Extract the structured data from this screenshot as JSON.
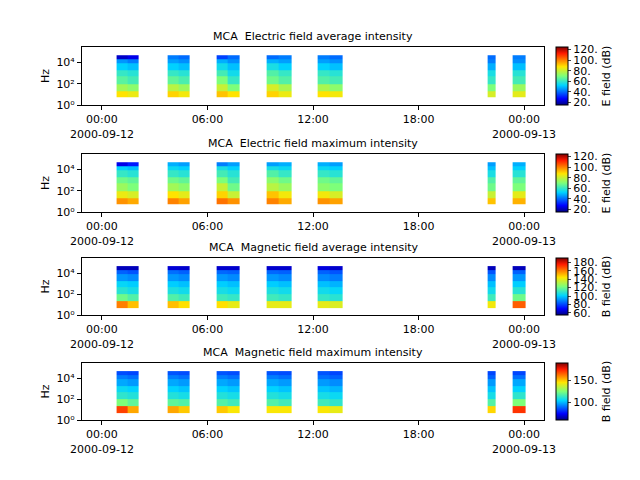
{
  "chart_data": [
    {
      "type": "heatmap",
      "title": "MCA  Electric field average intensity",
      "ylabel": "Hz",
      "log": "y",
      "xlim": [
        "2000-09-11 22:52",
        "2000-09-13 01:08"
      ],
      "xticks": [
        {
          "value": "2000-09-12 00:00",
          "label": "00:00\n2000-09-12"
        },
        {
          "value": "2000-09-12 06:00",
          "label": "06:00"
        },
        {
          "value": "2000-09-12 12:00",
          "label": "12:00"
        },
        {
          "value": "2000-09-12 18:00",
          "label": "18:00"
        },
        {
          "value": "2000-09-13 00:00",
          "label": "00:00\n2000-09-13"
        }
      ],
      "ylim": [
        1,
        300000
      ],
      "yticks": [
        {
          "value": 1,
          "label": "10⁰"
        },
        {
          "value": 100,
          "label": "10²"
        },
        {
          "value": 10000,
          "label": "10⁴"
        }
      ],
      "x_edges": [
        "2000-09-12 00:50",
        "2000-09-12 01:28",
        "2000-09-12 02:06",
        "2000-09-12 03:45",
        "2000-09-12 04:22",
        "2000-09-12 05:00",
        "2000-09-12 06:32",
        "2000-09-12 07:10",
        "2000-09-12 07:48",
        "2000-09-12 09:20",
        "2000-09-12 10:04",
        "2000-09-12 10:48",
        "2000-09-12 12:14",
        "2000-09-12 12:58",
        "2000-09-12 13:42",
        "2000-09-12 21:55",
        "2000-09-12 22:24",
        "2000-09-12 23:22",
        "2000-09-13 00:06"
      ],
      "y_edges": [
        5,
        20,
        100,
        500,
        2000,
        8000,
        20000,
        50000
      ],
      "z": [
        [
          88,
          85,
          null,
          90,
          86,
          null,
          92,
          88,
          null,
          90,
          85,
          null,
          88,
          86,
          null,
          82,
          null,
          84
        ],
        [
          75,
          72,
          null,
          78,
          74,
          null,
          80,
          70,
          null,
          82,
          76,
          null,
          76,
          72,
          null,
          70,
          null,
          74
        ],
        [
          65,
          62,
          null,
          66,
          63,
          null,
          70,
          60,
          null,
          68,
          64,
          null,
          64,
          62,
          null,
          60,
          null,
          62
        ],
        [
          60,
          58,
          null,
          60,
          58,
          null,
          62,
          55,
          null,
          64,
          60,
          null,
          60,
          58,
          null,
          56,
          null,
          58
        ],
        [
          52,
          50,
          null,
          52,
          50,
          null,
          55,
          50,
          null,
          56,
          52,
          null,
          52,
          50,
          null,
          48,
          null,
          50
        ],
        [
          45,
          42,
          null,
          46,
          44,
          null,
          48,
          44,
          null,
          48,
          46,
          null,
          46,
          44,
          null,
          42,
          null,
          44
        ],
        [
          22,
          25,
          null,
          42,
          40,
          null,
          35,
          40,
          null,
          40,
          42,
          null,
          42,
          40,
          null,
          40,
          null,
          42
        ]
      ],
      "colorbar_title": "E field (dB)",
      "colorbar_range": [
        15,
        125
      ],
      "colorbar_ticks": [
        {
          "value": 20,
          "label": "20."
        },
        {
          "value": 40,
          "label": "40."
        },
        {
          "value": 60,
          "label": "60."
        },
        {
          "value": 80,
          "label": "80."
        },
        {
          "value": 100,
          "label": "100."
        },
        {
          "value": 120,
          "label": "120."
        }
      ]
    },
    {
      "type": "heatmap",
      "title": "MCA  Electric field maximum intensity",
      "ylabel": "Hz",
      "log": "y",
      "xlim": [
        "2000-09-11 22:52",
        "2000-09-13 01:08"
      ],
      "xticks": [
        {
          "value": "2000-09-12 00:00",
          "label": "00:00\n2000-09-12"
        },
        {
          "value": "2000-09-12 06:00",
          "label": "06:00"
        },
        {
          "value": "2000-09-12 12:00",
          "label": "12:00"
        },
        {
          "value": "2000-09-12 18:00",
          "label": "18:00"
        },
        {
          "value": "2000-09-13 00:00",
          "label": "00:00\n2000-09-13"
        }
      ],
      "ylim": [
        1,
        300000
      ],
      "yticks": [
        {
          "value": 1,
          "label": "10⁰"
        },
        {
          "value": 100,
          "label": "10²"
        },
        {
          "value": 10000,
          "label": "10⁴"
        }
      ],
      "x_edges": [
        "2000-09-12 00:50",
        "2000-09-12 01:28",
        "2000-09-12 02:06",
        "2000-09-12 03:45",
        "2000-09-12 04:22",
        "2000-09-12 05:00",
        "2000-09-12 06:32",
        "2000-09-12 07:10",
        "2000-09-12 07:48",
        "2000-09-12 09:20",
        "2000-09-12 10:04",
        "2000-09-12 10:48",
        "2000-09-12 12:14",
        "2000-09-12 12:58",
        "2000-09-12 13:42",
        "2000-09-12 21:55",
        "2000-09-12 22:24",
        "2000-09-12 23:22",
        "2000-09-13 00:06"
      ],
      "y_edges": [
        5,
        20,
        100,
        500,
        2000,
        8000,
        20000,
        50000
      ],
      "z": [
        [
          98,
          95,
          null,
          100,
          96,
          null,
          102,
          98,
          null,
          100,
          95,
          null,
          98,
          96,
          null,
          92,
          null,
          94
        ],
        [
          85,
          82,
          null,
          88,
          84,
          null,
          90,
          80,
          null,
          92,
          86,
          null,
          86,
          82,
          null,
          80,
          null,
          84
        ],
        [
          74,
          70,
          null,
          75,
          72,
          null,
          80,
          68,
          null,
          78,
          74,
          null,
          72,
          70,
          null,
          68,
          null,
          70
        ],
        [
          68,
          66,
          null,
          68,
          66,
          null,
          70,
          62,
          null,
          72,
          68,
          null,
          68,
          66,
          null,
          64,
          null,
          66
        ],
        [
          60,
          58,
          null,
          60,
          58,
          null,
          62,
          58,
          null,
          64,
          60,
          null,
          60,
          58,
          null,
          56,
          null,
          58
        ],
        [
          52,
          50,
          null,
          54,
          52,
          null,
          56,
          52,
          null,
          56,
          54,
          null,
          54,
          52,
          null,
          50,
          null,
          52
        ],
        [
          25,
          30,
          null,
          48,
          46,
          null,
          42,
          46,
          null,
          46,
          48,
          null,
          48,
          46,
          null,
          46,
          null,
          48
        ]
      ],
      "colorbar_title": "E field (dB)",
      "colorbar_range": [
        15,
        125
      ],
      "colorbar_ticks": [
        {
          "value": 20,
          "label": "20."
        },
        {
          "value": 40,
          "label": "40."
        },
        {
          "value": 60,
          "label": "60."
        },
        {
          "value": 80,
          "label": "80."
        },
        {
          "value": 100,
          "label": "100."
        },
        {
          "value": 120,
          "label": "120."
        }
      ]
    },
    {
      "type": "heatmap",
      "title": "MCA  Magnetic field average intensity",
      "ylabel": "Hz",
      "log": "y",
      "xlim": [
        "2000-09-11 22:52",
        "2000-09-13 01:08"
      ],
      "xticks": [
        {
          "value": "2000-09-12 00:00",
          "label": "00:00\n2000-09-12"
        },
        {
          "value": "2000-09-12 06:00",
          "label": "06:00"
        },
        {
          "value": "2000-09-12 12:00",
          "label": "12:00"
        },
        {
          "value": "2000-09-12 18:00",
          "label": "18:00"
        },
        {
          "value": "2000-09-13 00:00",
          "label": "00:00\n2000-09-13"
        }
      ],
      "ylim": [
        1,
        300000
      ],
      "yticks": [
        {
          "value": 1,
          "label": "10⁰"
        },
        {
          "value": 100,
          "label": "10²"
        },
        {
          "value": 10000,
          "label": "10⁴"
        }
      ],
      "x_edges": [
        "2000-09-12 00:50",
        "2000-09-12 01:28",
        "2000-09-12 02:06",
        "2000-09-12 03:45",
        "2000-09-12 04:22",
        "2000-09-12 05:00",
        "2000-09-12 06:32",
        "2000-09-12 07:10",
        "2000-09-12 07:48",
        "2000-09-12 09:20",
        "2000-09-12 10:04",
        "2000-09-12 10:48",
        "2000-09-12 12:14",
        "2000-09-12 12:58",
        "2000-09-12 13:42",
        "2000-09-12 21:55",
        "2000-09-12 22:24",
        "2000-09-12 23:22",
        "2000-09-13 00:06"
      ],
      "y_edges": [
        5,
        20,
        100,
        500,
        2000,
        8000,
        20000,
        50000
      ],
      "z": [
        [
          160,
          150,
          null,
          150,
          145,
          null,
          145,
          140,
          null,
          140,
          140,
          null,
          140,
          138,
          null,
          142,
          null,
          165
        ],
        [
          120,
          115,
          null,
          115,
          112,
          null,
          112,
          110,
          null,
          112,
          110,
          null,
          110,
          108,
          null,
          112,
          null,
          120
        ],
        [
          108,
          105,
          null,
          106,
          104,
          null,
          105,
          103,
          null,
          106,
          104,
          null,
          104,
          102,
          null,
          104,
          null,
          108
        ],
        [
          102,
          100,
          null,
          100,
          98,
          null,
          100,
          98,
          null,
          100,
          98,
          null,
          98,
          96,
          null,
          98,
          null,
          100
        ],
        [
          92,
          90,
          null,
          92,
          90,
          null,
          92,
          90,
          null,
          92,
          90,
          null,
          90,
          88,
          null,
          90,
          null,
          92
        ],
        [
          84,
          82,
          null,
          86,
          84,
          null,
          85,
          84,
          null,
          85,
          84,
          null,
          84,
          82,
          null,
          82,
          null,
          84
        ],
        [
          62,
          62,
          null,
          65,
          64,
          null,
          64,
          64,
          null,
          64,
          64,
          null,
          66,
          64,
          null,
          62,
          null,
          62
        ]
      ],
      "colorbar_title": "B field (dB)",
      "colorbar_range": [
        55,
        190
      ],
      "colorbar_ticks": [
        {
          "value": 60,
          "label": "60."
        },
        {
          "value": 80,
          "label": "80."
        },
        {
          "value": 100,
          "label": "100."
        },
        {
          "value": 120,
          "label": "120."
        },
        {
          "value": 140,
          "label": "140."
        },
        {
          "value": 160,
          "label": "160."
        },
        {
          "value": 180,
          "label": "180."
        }
      ]
    },
    {
      "type": "heatmap",
      "title": "MCA  Magnetic field maximum intensity",
      "ylabel": "Hz",
      "log": "y",
      "xlim": [
        "2000-09-11 22:52",
        "2000-09-13 01:08"
      ],
      "xticks": [
        {
          "value": "2000-09-12 00:00",
          "label": "00:00\n2000-09-12"
        },
        {
          "value": "2000-09-12 06:00",
          "label": "06:00"
        },
        {
          "value": "2000-09-12 12:00",
          "label": "12:00"
        },
        {
          "value": "2000-09-12 18:00",
          "label": "18:00"
        },
        {
          "value": "2000-09-13 00:00",
          "label": "00:00\n2000-09-13"
        }
      ],
      "ylim": [
        1,
        300000
      ],
      "yticks": [
        {
          "value": 1,
          "label": "10⁰"
        },
        {
          "value": 100,
          "label": "10²"
        },
        {
          "value": 10000,
          "label": "10⁴"
        }
      ],
      "x_edges": [
        "2000-09-12 00:50",
        "2000-09-12 01:28",
        "2000-09-12 02:06",
        "2000-09-12 03:45",
        "2000-09-12 04:22",
        "2000-09-12 05:00",
        "2000-09-12 06:32",
        "2000-09-12 07:10",
        "2000-09-12 07:48",
        "2000-09-12 09:20",
        "2000-09-12 10:04",
        "2000-09-12 10:48",
        "2000-09-12 12:14",
        "2000-09-12 12:58",
        "2000-09-12 13:42",
        "2000-09-12 21:55",
        "2000-09-12 22:24",
        "2000-09-12 23:22",
        "2000-09-13 00:06"
      ],
      "y_edges": [
        5,
        20,
        100,
        500,
        2000,
        8000,
        20000,
        50000
      ],
      "z": [
        [
          170,
          155,
          null,
          155,
          150,
          null,
          150,
          145,
          null,
          145,
          145,
          null,
          145,
          142,
          null,
          148,
          null,
          172
        ],
        [
          125,
          120,
          null,
          120,
          118,
          null,
          118,
          115,
          null,
          118,
          115,
          null,
          115,
          112,
          null,
          118,
          null,
          125
        ],
        [
          112,
          110,
          null,
          110,
          108,
          null,
          110,
          108,
          null,
          110,
          108,
          null,
          108,
          106,
          null,
          108,
          null,
          112
        ],
        [
          106,
          104,
          null,
          104,
          102,
          null,
          104,
          102,
          null,
          104,
          102,
          null,
          102,
          100,
          null,
          102,
          null,
          104
        ],
        [
          98,
          96,
          null,
          98,
          96,
          null,
          98,
          96,
          null,
          98,
          96,
          null,
          96,
          94,
          null,
          96,
          null,
          98
        ],
        [
          92,
          90,
          null,
          92,
          90,
          null,
          92,
          90,
          null,
          92,
          90,
          null,
          90,
          88,
          null,
          88,
          null,
          90
        ],
        [
          85,
          84,
          null,
          86,
          85,
          null,
          86,
          85,
          null,
          86,
          85,
          null,
          86,
          84,
          null,
          84,
          null,
          84
        ]
      ],
      "colorbar_title": "B field (dB)",
      "colorbar_range": [
        60,
        190
      ],
      "colorbar_ticks": [
        {
          "value": 100,
          "label": "100."
        },
        {
          "value": 150,
          "label": "150."
        }
      ]
    }
  ]
}
